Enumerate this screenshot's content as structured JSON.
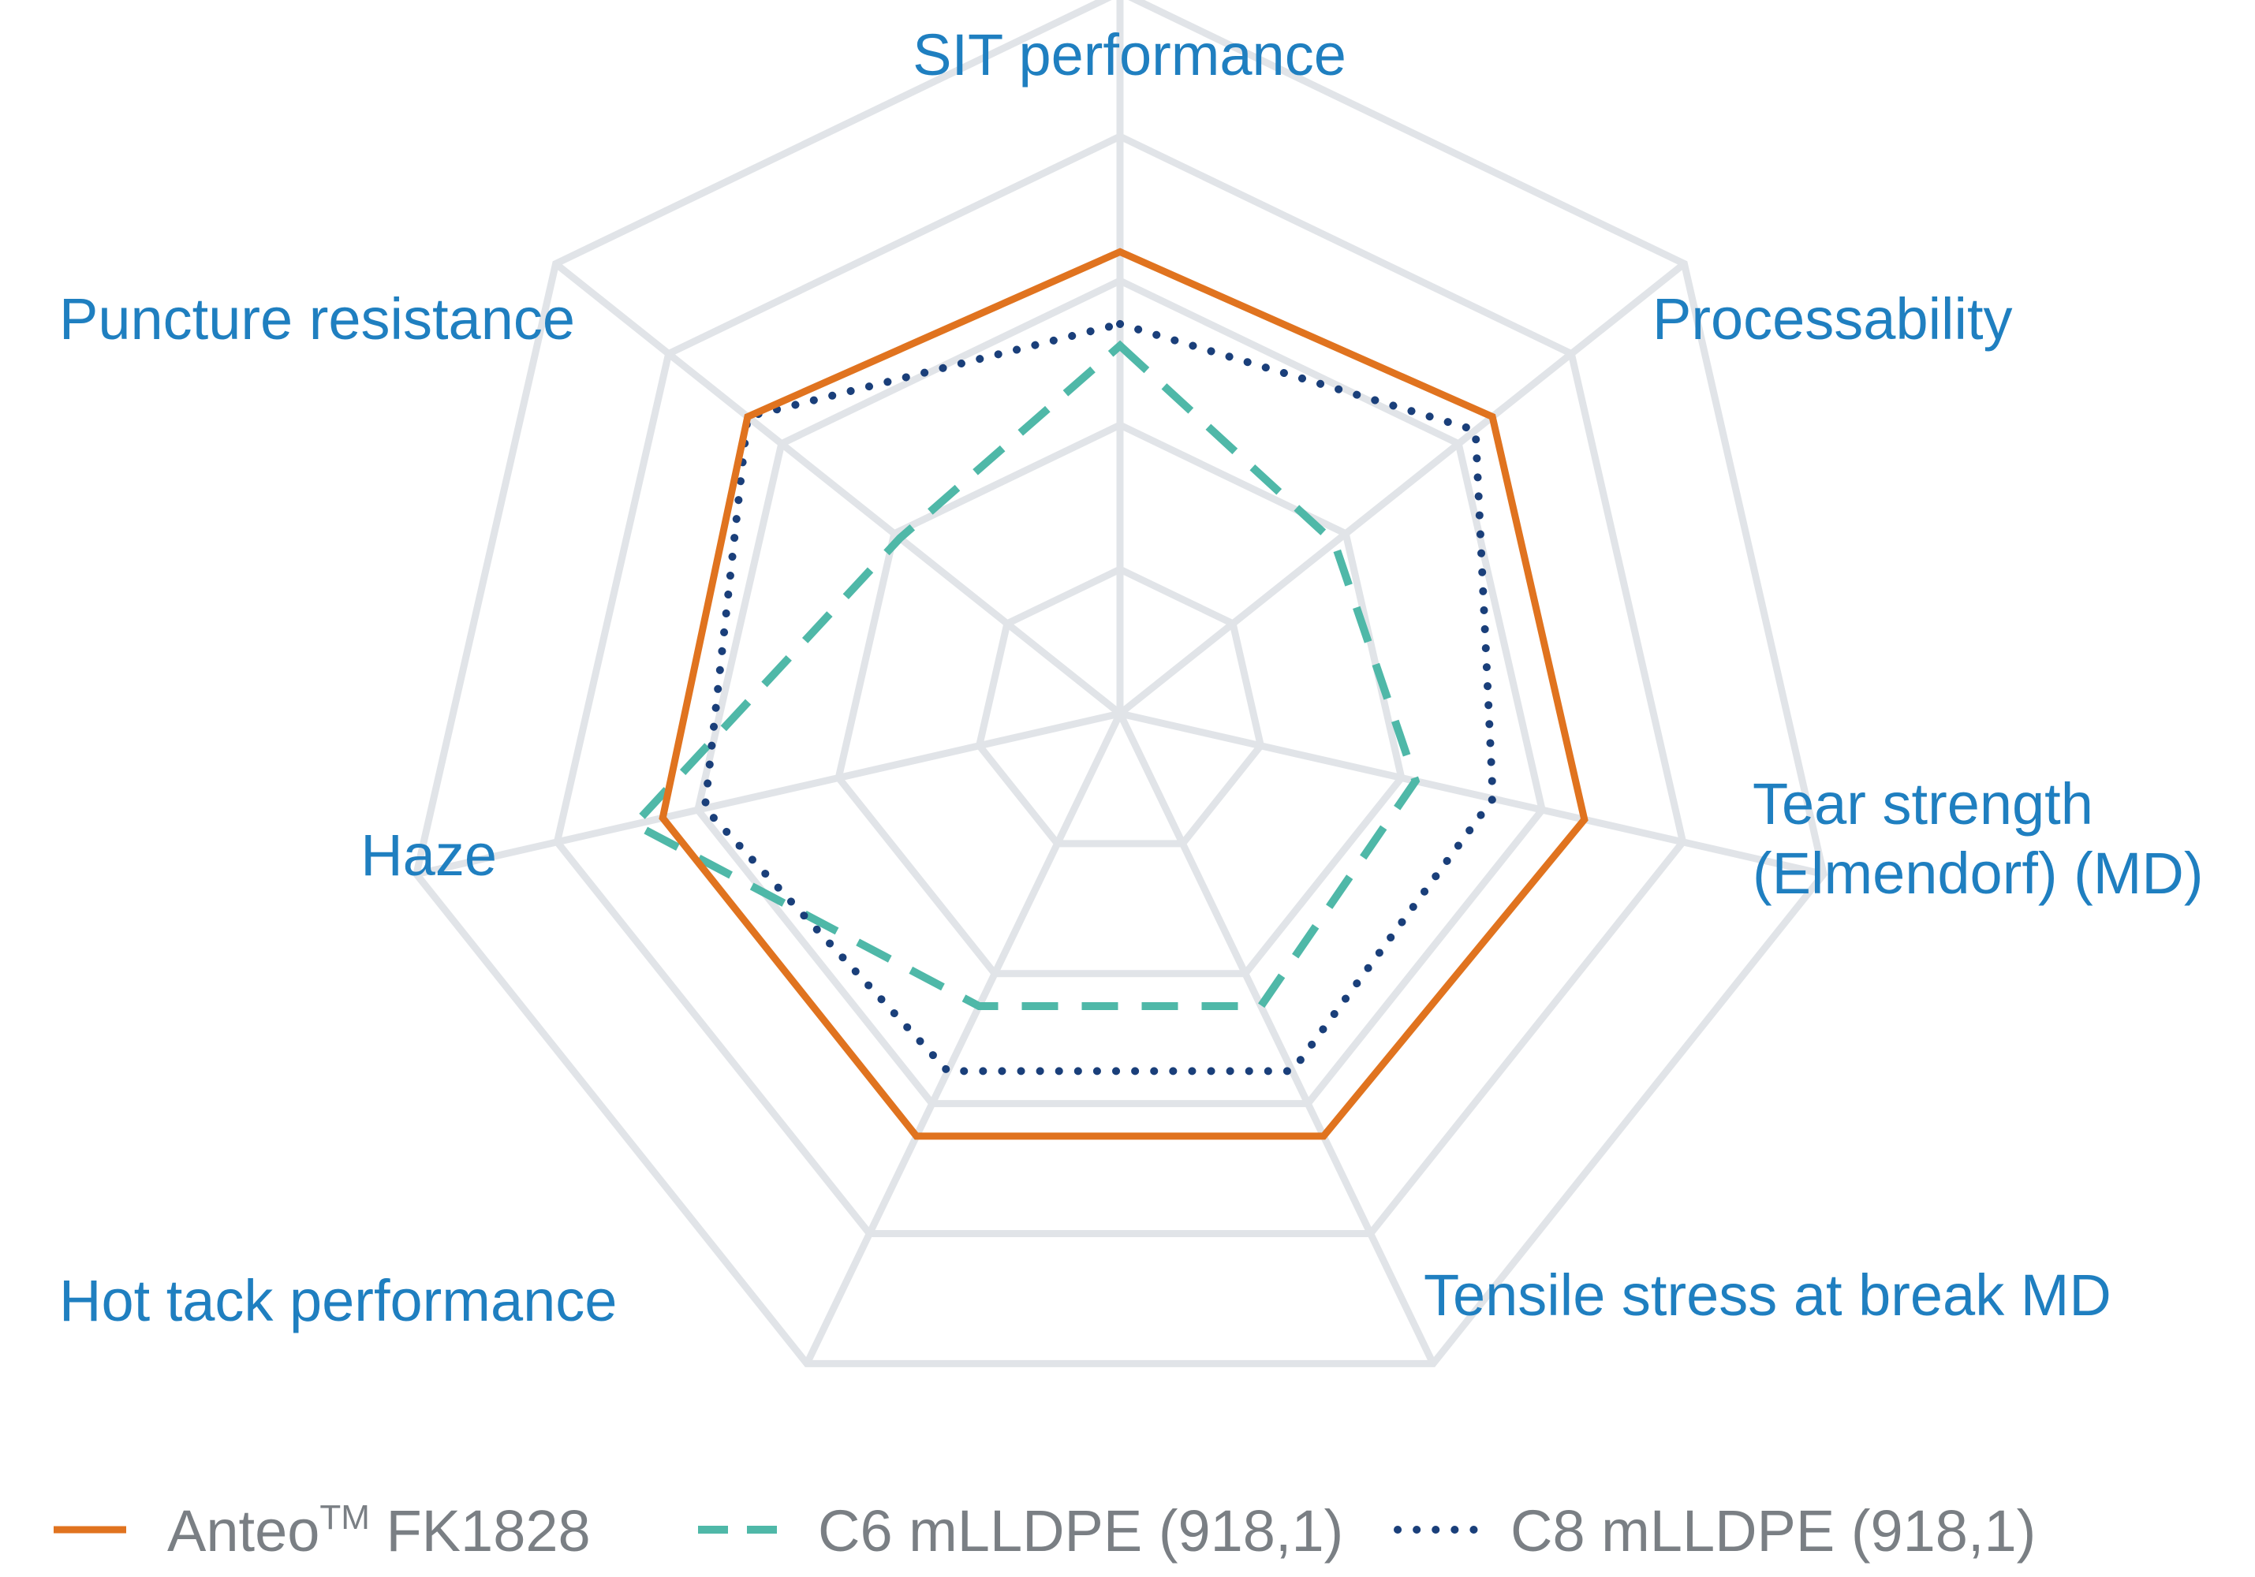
{
  "chart_data": {
    "type": "radar",
    "axes": [
      "SIT performance",
      "Processability",
      [
        "Tear strength",
        "(Elmendorf) (MD)"
      ],
      "Tensile stress at break MD",
      "Hot tack performance",
      "Haze",
      "Puncture resistance"
    ],
    "rlim": [
      0,
      5
    ],
    "rings": 5,
    "grid": true,
    "series": [
      {
        "name": "Anteo",
        "name_sup": "TM",
        "name_suffix": " FK1828",
        "color": "#e0731f",
        "line_style": "solid",
        "values": [
          3.2,
          3.3,
          3.3,
          3.25,
          3.25,
          3.25,
          3.3
        ]
      },
      {
        "name": "C6 mLLDPE (918,1)",
        "color": "#4fb8a8",
        "line_style": "dashed",
        "values": [
          2.55,
          1.9,
          2.1,
          2.25,
          2.25,
          3.45,
          1.95
        ]
      },
      {
        "name": "C8 mLLDPE (918,1)",
        "color": "#1a3f7a",
        "line_style": "dotted",
        "values": [
          2.7,
          3.15,
          2.65,
          2.75,
          2.75,
          2.95,
          3.3
        ]
      }
    ],
    "legend": "bottom",
    "colors": {
      "grid": "#e1e4e8",
      "axis_text": "#1f7fc0",
      "legend_text": "#7a7f84"
    }
  }
}
